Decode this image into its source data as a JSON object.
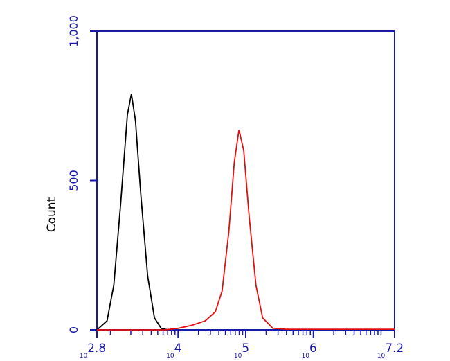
{
  "chart_data": {
    "type": "line",
    "ylabel": "Count",
    "xscale": "log",
    "xlim": [
      630.957,
      15848931.92
    ],
    "ylim": [
      0,
      1000
    ],
    "yticks": [
      0,
      500,
      {
        "value": 1000,
        "label": "1,000"
      }
    ],
    "xticks": [
      {
        "value": 630.957,
        "label": "10",
        "exponent": "2.8"
      },
      {
        "value": 10000,
        "label": "10",
        "exponent": "4"
      },
      {
        "value": 100000,
        "label": "10",
        "exponent": "5"
      },
      {
        "value": 1000000,
        "label": "10",
        "exponent": "6"
      },
      {
        "value": 15848931.92,
        "label": "10",
        "exponent": "7.2"
      }
    ],
    "xticks_minor": [
      1000,
      2000,
      3000,
      4000,
      5000,
      6000,
      7000,
      8000,
      9000,
      20000,
      30000,
      40000,
      50000,
      60000,
      70000,
      80000,
      90000,
      200000,
      300000,
      400000,
      500000,
      600000,
      700000,
      800000,
      900000,
      2000000,
      3000000,
      4000000,
      5000000,
      6000000,
      7000000,
      8000000,
      9000000,
      10000000
    ],
    "axis_color": "#1a1aa8",
    "series": [
      {
        "color": "#000000",
        "x": [
          631,
          708,
          891,
          1122,
          1413,
          1778,
          2042,
          2344,
          2818,
          3548,
          4467,
          5623,
          7079
        ],
        "values": [
          0,
          10,
          30,
          150,
          420,
          720,
          790,
          700,
          450,
          180,
          40,
          5,
          0
        ]
      },
      {
        "color": "#e01010",
        "x": [
          631,
          6310,
          10000,
          15849,
          25119,
          35481,
          44668,
          56234,
          67608,
          79433,
          93325,
          112202,
          141254,
          177828,
          251189,
          398107,
          15848932
        ],
        "values": [
          0,
          0,
          5,
          15,
          30,
          60,
          130,
          330,
          560,
          670,
          600,
          380,
          150,
          40,
          5,
          2,
          2
        ]
      }
    ]
  }
}
